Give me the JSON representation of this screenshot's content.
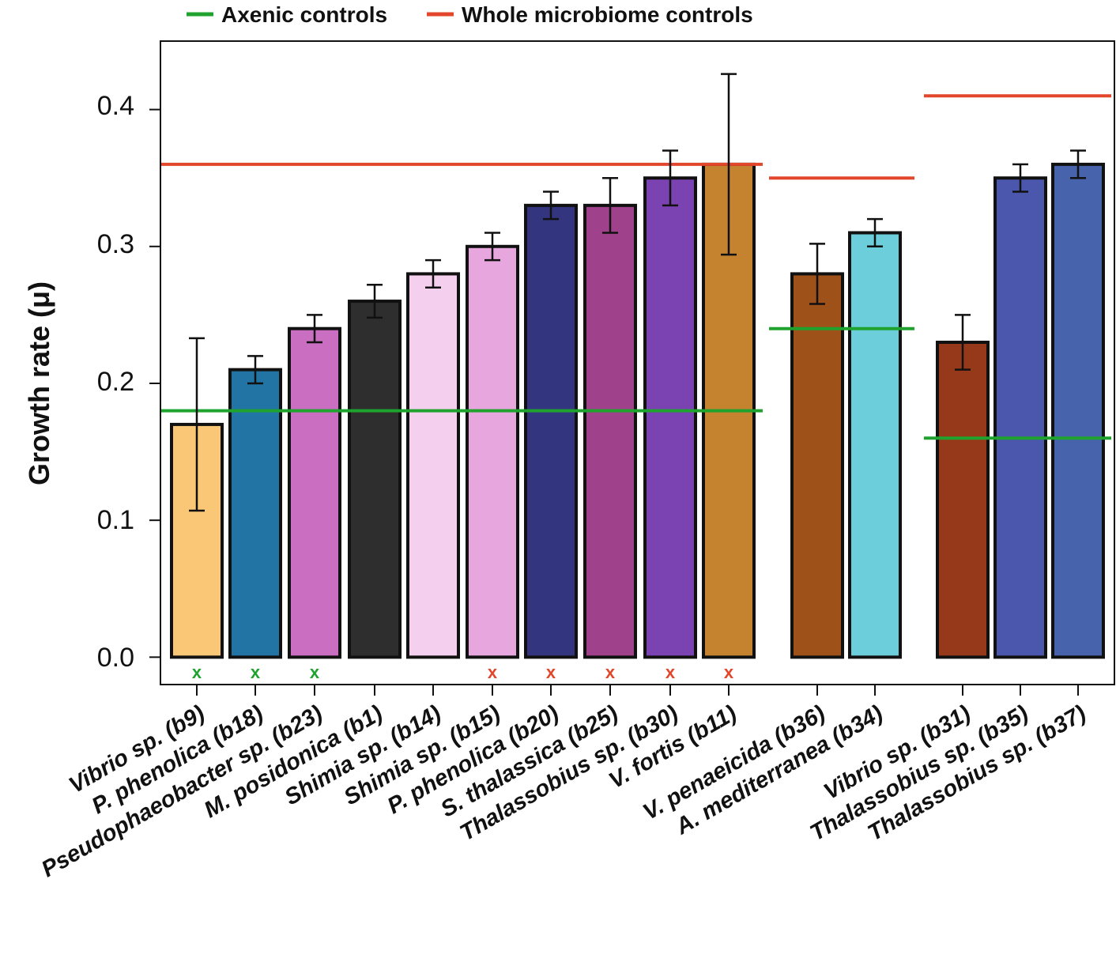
{
  "chart_data": {
    "type": "bar",
    "title": "",
    "xlabel": "",
    "ylabel": "Growth rate (μ)",
    "ylim": [
      -0.02,
      0.45
    ],
    "yticks": [
      "0.0",
      "0.1",
      "0.2",
      "0.3",
      "0.4"
    ],
    "grid": false,
    "legend_position": "top-left",
    "legend": [
      {
        "label": "Axenic controls",
        "color": "#1fa22e"
      },
      {
        "label": "Whole microbiome controls",
        "color": "#e2472b"
      }
    ],
    "groups": [
      {
        "bars": [
          {
            "label": "Vibrio sp. (b9)",
            "value": 0.17,
            "error": [
              0.107,
              0.233
            ],
            "color": "#fac777",
            "marker": "x",
            "marker_color": "#1fa22e"
          },
          {
            "label": "P. phenolica (b18)",
            "value": 0.21,
            "error": [
              0.2,
              0.22
            ],
            "color": "#2274a5",
            "marker": "x",
            "marker_color": "#1fa22e"
          },
          {
            "label": "Pseudophaeobacter sp. (b23)",
            "value": 0.24,
            "error": [
              0.23,
              0.25
            ],
            "color": "#c96ec1",
            "marker": "x",
            "marker_color": "#1fa22e"
          },
          {
            "label": "M. posidonica (b1)",
            "value": 0.26,
            "error": [
              0.248,
              0.272
            ],
            "color": "#2e2e2e",
            "marker": "",
            "marker_color": ""
          },
          {
            "label": "Shimia sp. (b14)",
            "value": 0.28,
            "error": [
              0.27,
              0.29
            ],
            "color": "#f5d0ee",
            "marker": "",
            "marker_color": ""
          },
          {
            "label": "Shimia sp. (b15)",
            "value": 0.3,
            "error": [
              0.29,
              0.31
            ],
            "color": "#e7a6dd",
            "marker": "x",
            "marker_color": "#e2472b"
          },
          {
            "label": "P. phenolica (b20)",
            "value": 0.33,
            "error": [
              0.32,
              0.34
            ],
            "color": "#33357f",
            "marker": "x",
            "marker_color": "#e2472b"
          },
          {
            "label": "S. thalassica (b25)",
            "value": 0.33,
            "error": [
              0.31,
              0.35
            ],
            "color": "#a0428b",
            "marker": "x",
            "marker_color": "#e2472b"
          },
          {
            "label": "Thalassobius sp. (b30)",
            "value": 0.35,
            "error": [
              0.33,
              0.37
            ],
            "color": "#7b42b2",
            "marker": "x",
            "marker_color": "#e2472b"
          },
          {
            "label": "V. fortis (b11)",
            "value": 0.36,
            "error": [
              0.294,
              0.426
            ],
            "color": "#c58330",
            "marker": "x",
            "marker_color": "#e2472b"
          }
        ],
        "axenic_control": 0.18,
        "whole_microbiome_control": 0.36
      },
      {
        "bars": [
          {
            "label": "V. penaeicida (b36)",
            "value": 0.28,
            "error": [
              0.258,
              0.302
            ],
            "color": "#9e5119",
            "marker": "",
            "marker_color": ""
          },
          {
            "label": "A. mediterranea (b34)",
            "value": 0.31,
            "error": [
              0.3,
              0.32
            ],
            "color": "#6ccedb",
            "marker": "",
            "marker_color": ""
          }
        ],
        "axenic_control": 0.24,
        "whole_microbiome_control": 0.35
      },
      {
        "bars": [
          {
            "label": "Vibrio sp. (b31)",
            "value": 0.23,
            "error": [
              0.21,
              0.25
            ],
            "color": "#96391b",
            "marker": "",
            "marker_color": ""
          },
          {
            "label": "Thalassobius sp. (b35)",
            "value": 0.35,
            "error": [
              0.34,
              0.36
            ],
            "color": "#4b57ad",
            "marker": "",
            "marker_color": ""
          },
          {
            "label": "Thalassobius sp. (b37)",
            "value": 0.36,
            "error": [
              0.35,
              0.37
            ],
            "color": "#4663ac",
            "marker": "",
            "marker_color": ""
          }
        ],
        "axenic_control": 0.16,
        "whole_microbiome_control": 0.41
      }
    ]
  }
}
